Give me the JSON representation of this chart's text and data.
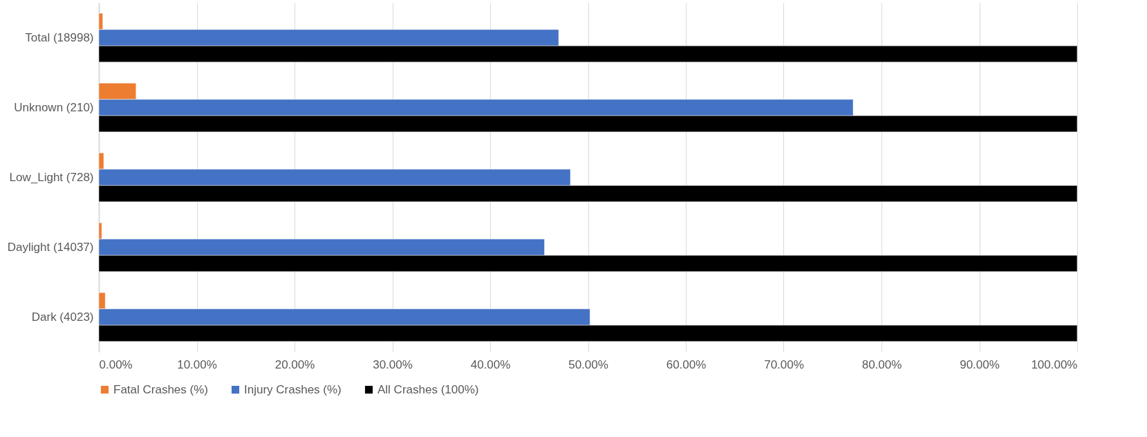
{
  "chart_data": {
    "type": "bar",
    "orientation": "horizontal",
    "categories": [
      "Total (18998)",
      "Unknown (210)",
      "Low_Light (728)",
      "Daylight (14037)",
      "Dark (4023)"
    ],
    "series": [
      {
        "name": "Fatal Crashes (%)",
        "color": "#ed7d31",
        "values": [
          0.4,
          3.8,
          0.5,
          0.3,
          0.65
        ]
      },
      {
        "name": "Injury Crashes (%)",
        "color": "#4472c4",
        "values": [
          47.0,
          77.1,
          48.2,
          45.55,
          50.2
        ]
      },
      {
        "name": "All Crashes (100%)",
        "color": "#000000",
        "values": [
          100,
          100,
          100,
          100,
          100
        ]
      }
    ],
    "xlim": [
      0,
      100
    ],
    "xticks": [
      {
        "value": 0,
        "label": "0.00%"
      },
      {
        "value": 10,
        "label": "10.00%"
      },
      {
        "value": 20,
        "label": "20.00%"
      },
      {
        "value": 30,
        "label": "30.00%"
      },
      {
        "value": 40,
        "label": "40.00%"
      },
      {
        "value": 50,
        "label": "50.00%"
      },
      {
        "value": 60,
        "label": "60.00%"
      },
      {
        "value": 70,
        "label": "70.00%"
      },
      {
        "value": 80,
        "label": "80.00%"
      },
      {
        "value": 90,
        "label": "90.00%"
      },
      {
        "value": 100,
        "label": "100.00%"
      }
    ],
    "grid": "x",
    "legend": "bottom"
  }
}
